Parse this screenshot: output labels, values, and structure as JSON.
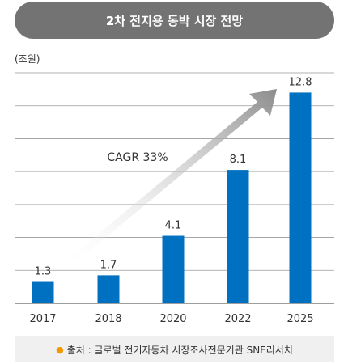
{
  "title": "2차 전지용 동박 시장 전망",
  "unit_label": "(조원)",
  "annotation": "CAGR 33%",
  "source_text": "출처 : 글로벌 전기자동차 시장조사전문기관 SNE리서치",
  "colors": {
    "bar": "#0070c0",
    "title_bg": "#737373",
    "grid": "#999999",
    "source_dot": "#f39800"
  },
  "chart_data": {
    "type": "bar",
    "categories": [
      "2017",
      "2018",
      "2020",
      "2022",
      "2025"
    ],
    "values": [
      1.3,
      1.7,
      4.1,
      8.1,
      12.8
    ],
    "value_labels": [
      "1.3",
      "1.7",
      "4.1",
      "8.1",
      "12.8"
    ],
    "title": "2차 전지용 동박 시장 전망",
    "xlabel": "",
    "ylabel": "(조원)",
    "ylim": [
      0,
      14
    ],
    "grid": true,
    "annotations": [
      "CAGR 33%"
    ]
  }
}
